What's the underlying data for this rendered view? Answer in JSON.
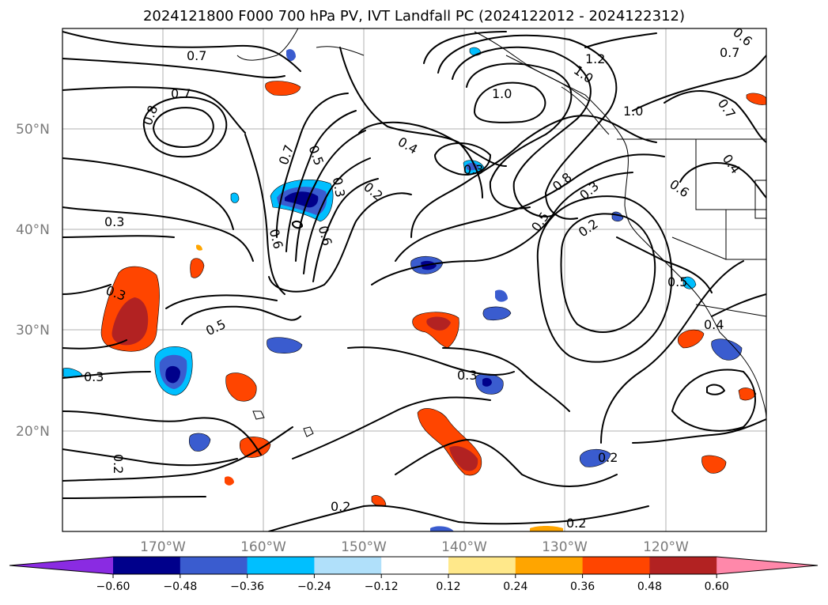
{
  "title": "2024121800 F000 700 hPa PV, IVT Landfall PC (2024122012 - 2024122312)",
  "lat_labels": [
    "50°N",
    "40°N",
    "30°N",
    "20°N"
  ],
  "lon_labels": [
    "170°W",
    "160°W",
    "150°W",
    "140°W",
    "130°W",
    "120°W"
  ],
  "colorbar": {
    "ticks": [
      "−0.60",
      "−0.48",
      "−0.36",
      "−0.24",
      "−0.12",
      "0.12",
      "0.24",
      "0.36",
      "0.48",
      "0.60"
    ],
    "colors": [
      "#8a2be2",
      "#00008b",
      "#3a5ccf",
      "#00bfff",
      "#b0e0fa",
      "#ffffff",
      "#ffe88a",
      "#ffa500",
      "#ff4500",
      "#b22222",
      "#ff88aa"
    ]
  },
  "contour_labels": [
    "0.7",
    "0.7",
    "0.8",
    "0.5",
    "0.7",
    "0.3",
    "0.6",
    "0.6",
    "0.3",
    "0.5",
    "0.3",
    "0.3",
    "0.4",
    "0.2",
    "0.3",
    "1.0",
    "1.2",
    "1.0",
    "1.0",
    "0.7",
    "0.7",
    "0.6",
    "0.4",
    "0.6",
    "0.8",
    "0.5",
    "0.3",
    "0.2",
    "0.5",
    "0.4",
    "0.3",
    "0.2",
    "0.2",
    "0.2",
    "0.2"
  ],
  "fill_colors": {
    "neg_light": "#b0e0fa",
    "neg_mid": "#00bfff",
    "neg_strong": "#3a5ccf",
    "neg_max": "#00008b",
    "pos_light": "#ffe88a",
    "pos_mid": "#ffa500",
    "pos_strong": "#ff4500",
    "pos_max": "#b22222"
  }
}
